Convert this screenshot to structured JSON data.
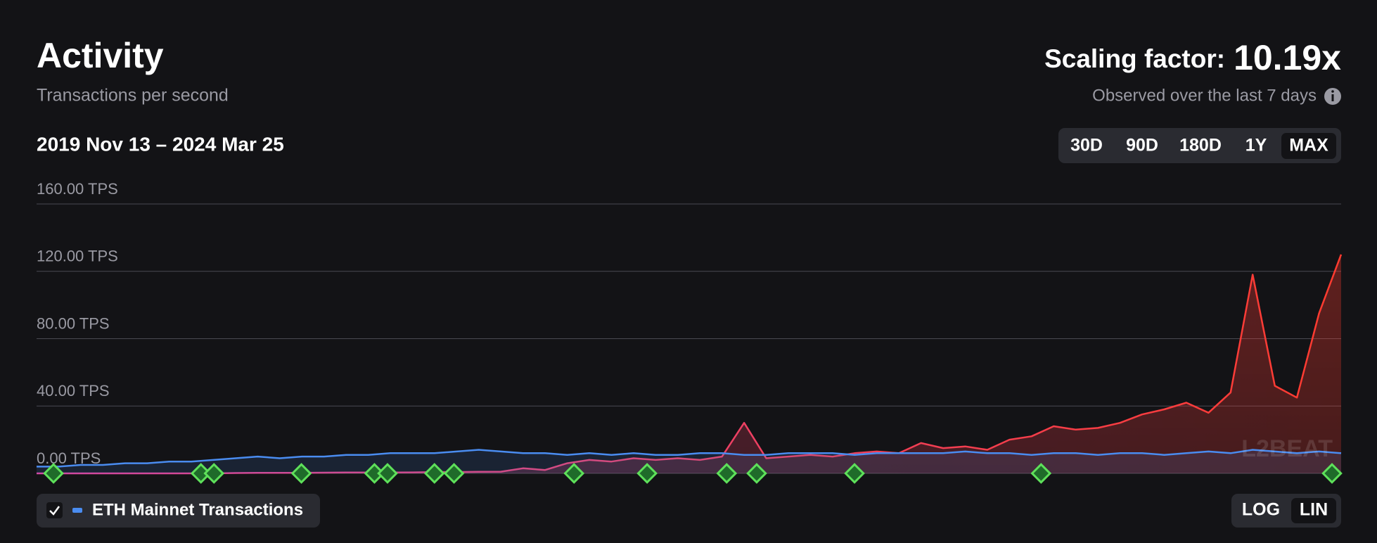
{
  "header": {
    "title": "Activity",
    "subtitle": "Transactions per second",
    "scaling_label": "Scaling factor:",
    "scaling_value": "10.19x",
    "observed": "Observed over the last 7 days",
    "range": "2019 Nov 13 – 2024 Mar 25"
  },
  "range_buttons": [
    "30D",
    "90D",
    "180D",
    "1Y",
    "MAX"
  ],
  "selected_range": "MAX",
  "scale_buttons": [
    "LOG",
    "LIN"
  ],
  "selected_scale": "LIN",
  "watermark": "L2BEAT",
  "chart_data": {
    "type": "area",
    "categories": [
      null,
      null,
      null,
      null,
      null,
      null,
      null,
      null,
      null,
      null,
      null,
      null,
      null,
      null,
      null,
      null,
      null,
      null,
      null,
      null,
      null,
      null,
      null,
      null,
      null,
      null,
      null,
      null,
      null,
      null,
      null,
      null,
      null,
      null,
      null,
      null,
      null,
      null,
      null,
      null,
      null,
      null,
      null,
      null,
      null,
      null,
      null,
      null,
      null,
      null,
      null,
      null,
      null,
      null,
      null,
      null,
      null,
      null,
      null,
      null
    ],
    "ylim": [
      0,
      160
    ],
    "yticks": [
      {
        "value": 0,
        "label": "0.00 TPS"
      },
      {
        "value": 40,
        "label": "40.00 TPS"
      },
      {
        "value": 80,
        "label": "80.00 TPS"
      },
      {
        "value": 120,
        "label": "120.00 TPS"
      },
      {
        "value": 160,
        "label": "160.00 TPS"
      }
    ],
    "grid": true,
    "series": [
      {
        "colors": [
          "#d8459f",
          "#ff3b2f"
        ],
        "values": [
          0,
          0,
          0,
          0,
          0,
          0,
          0,
          0,
          0,
          0.2,
          0.3,
          0.3,
          0.3,
          0.4,
          0.5,
          0.5,
          0.5,
          0.6,
          0.8,
          0.8,
          0.9,
          1,
          3,
          2,
          6,
          8,
          7,
          9,
          8,
          9,
          8,
          10,
          30,
          9,
          10,
          11,
          10,
          12,
          13,
          12,
          18,
          15,
          16,
          14,
          20,
          22,
          28,
          26,
          27,
          30,
          35,
          38,
          42,
          36,
          48,
          118,
          52,
          45,
          95,
          130
        ]
      },
      {
        "name": "ETH Mainnet Transactions",
        "color": "#4a8cf0",
        "values": [
          4,
          4,
          5,
          5,
          6,
          6,
          7,
          7,
          8,
          9,
          10,
          9,
          10,
          10,
          11,
          11,
          12,
          12,
          12,
          13,
          14,
          13,
          12,
          12,
          11,
          12,
          11,
          12,
          11,
          11,
          12,
          12,
          11,
          11,
          12,
          12,
          12,
          11,
          12,
          12,
          12,
          12,
          13,
          12,
          12,
          11,
          12,
          12,
          11,
          12,
          12,
          11,
          12,
          13,
          12,
          14,
          13,
          12,
          13,
          12
        ]
      }
    ],
    "legend_checked": true
  }
}
